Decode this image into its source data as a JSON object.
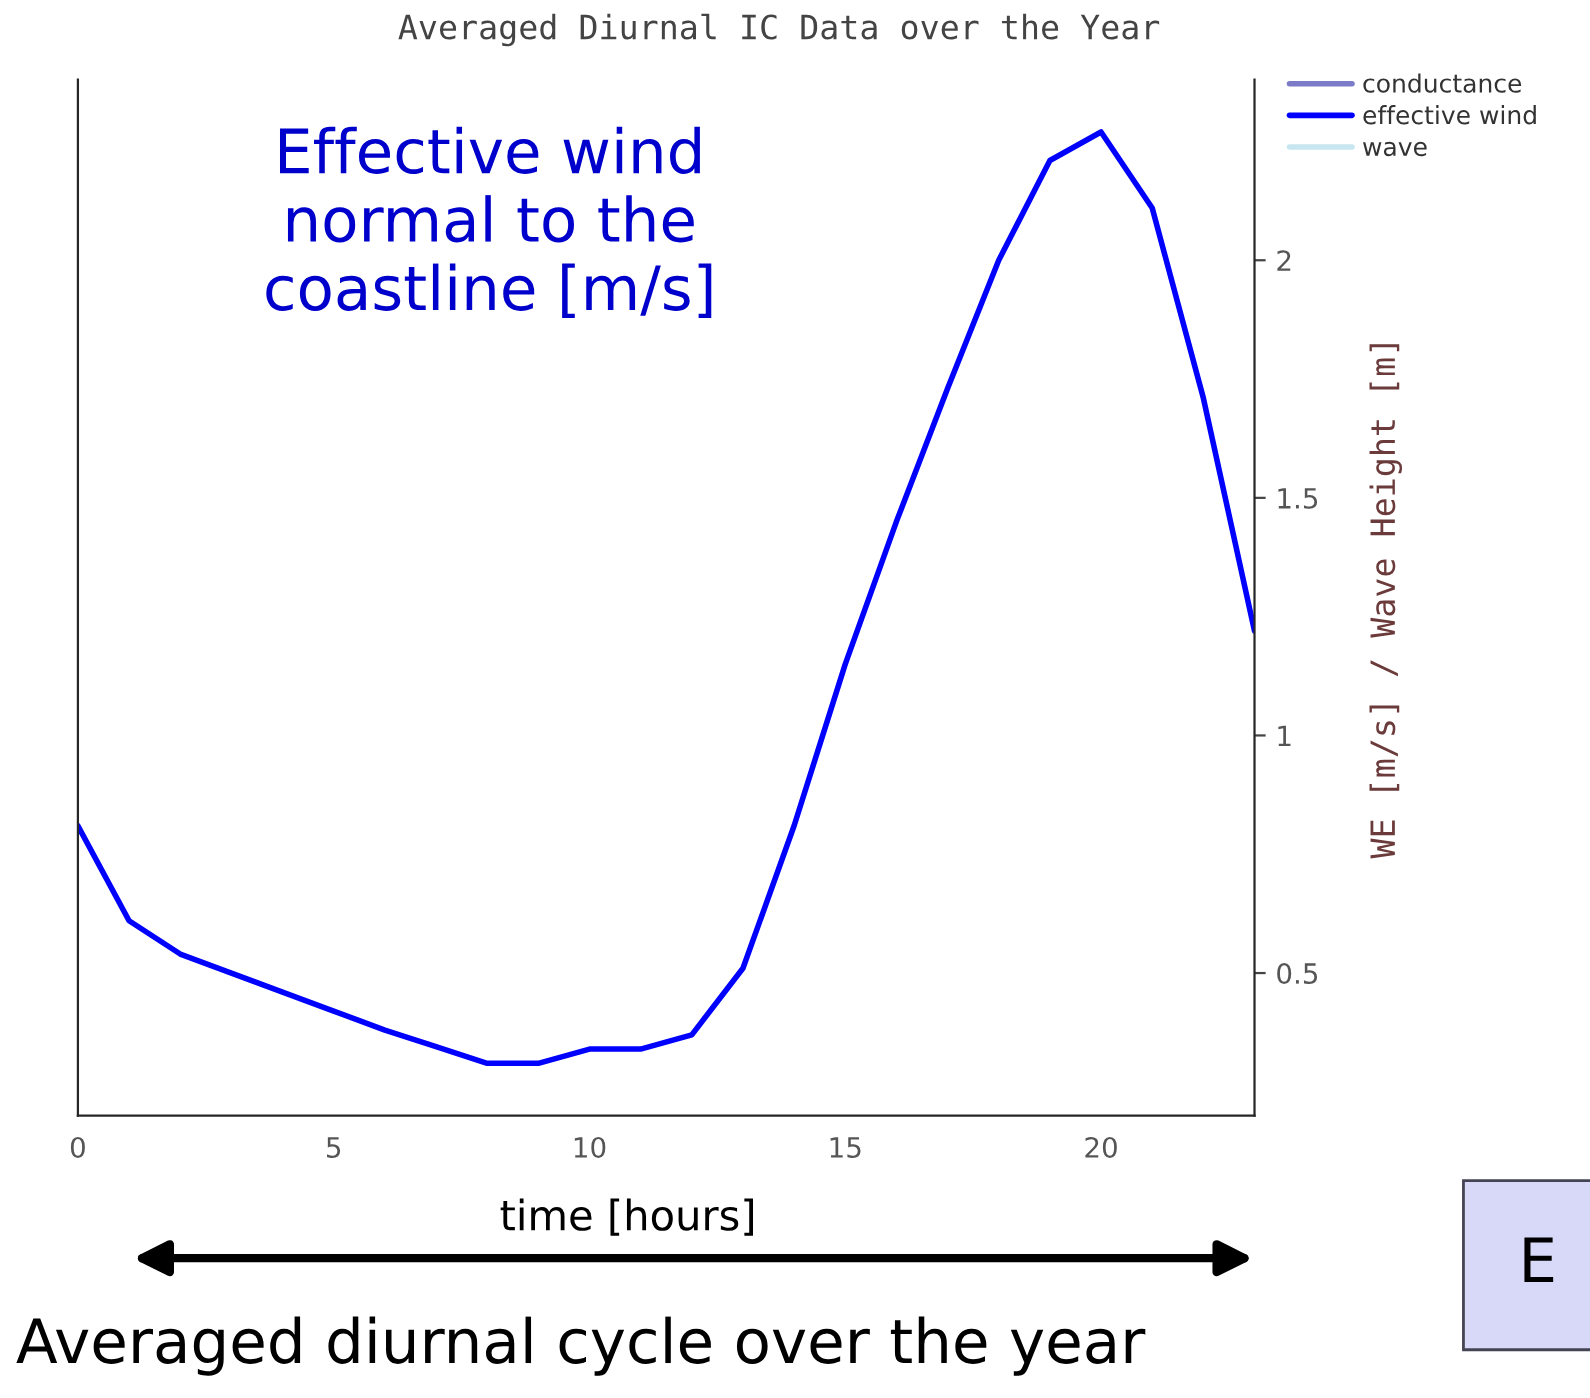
{
  "chart_data": {
    "type": "line",
    "title": "Averaged Diurnal IC Data over the Year",
    "xlabel": "time [hours]",
    "ylabel": "WE [m/s] / Wave Height [m]",
    "x": [
      0,
      1,
      2,
      3,
      4,
      5,
      6,
      7,
      8,
      9,
      10,
      11,
      12,
      13,
      14,
      15,
      16,
      17,
      18,
      19,
      20,
      21,
      22,
      23
    ],
    "series": [
      {
        "name": "conductance",
        "color": "#7b7bc8",
        "values": [
          null,
          null,
          null,
          null,
          null,
          null,
          null,
          null,
          null,
          null,
          null,
          null,
          null,
          null,
          null,
          null,
          null,
          null,
          null,
          null,
          null,
          null,
          null,
          null
        ]
      },
      {
        "name": "effective wind",
        "color": "#0000ff",
        "values": [
          0.81,
          0.61,
          0.54,
          0.5,
          0.46,
          0.42,
          0.38,
          0.345,
          0.31,
          0.31,
          0.34,
          0.34,
          0.37,
          0.51,
          0.81,
          1.15,
          1.45,
          1.73,
          2.0,
          2.21,
          2.27,
          2.11,
          1.71,
          1.22
        ]
      },
      {
        "name": "wave",
        "color": "#c8e6f0",
        "values": [
          null,
          null,
          null,
          null,
          null,
          null,
          null,
          null,
          null,
          null,
          null,
          null,
          null,
          null,
          null,
          null,
          null,
          null,
          null,
          null,
          null,
          null,
          null,
          null
        ]
      }
    ],
    "xlim": [
      0,
      23
    ],
    "xticks": [
      0,
      5,
      10,
      15,
      20
    ],
    "ylim": [
      0.2,
      2.38
    ],
    "yticks": [
      0.5,
      1,
      1.5,
      2
    ],
    "grid": false,
    "legend": "top right",
    "marker": "none",
    "line_style": "solid",
    "annotations": [
      "Effective wind normal to the coastline [m/s]",
      "Averaged diurnal cycle over the year",
      "E"
    ]
  }
}
